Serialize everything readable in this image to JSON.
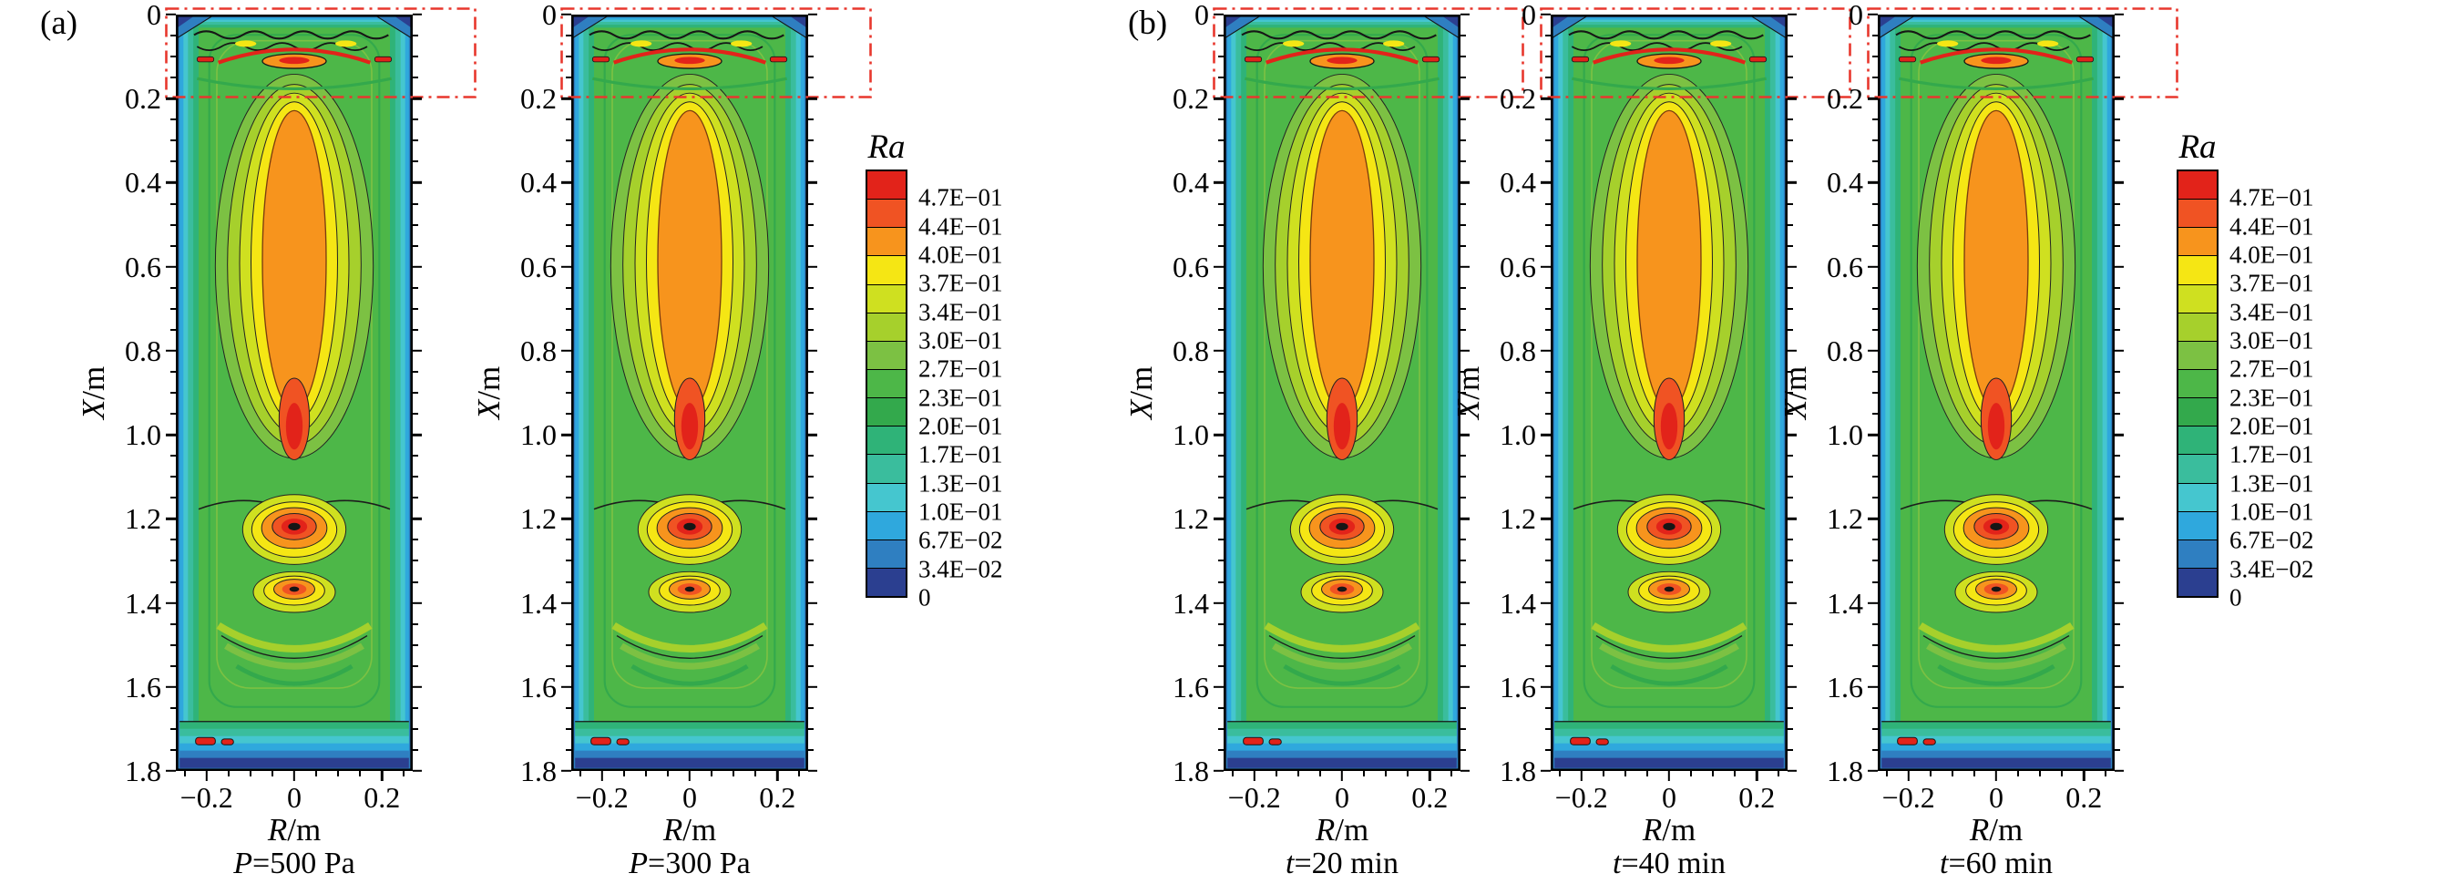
{
  "panels": [
    {
      "label": "(a)",
      "plots": [
        {
          "condition_var": "P",
          "condition_rest": "=500 Pa"
        },
        {
          "condition_var": "P",
          "condition_rest": "=300 Pa"
        }
      ]
    },
    {
      "label": "(b)",
      "plots": [
        {
          "condition_var": "t",
          "condition_rest": "=20 min"
        },
        {
          "condition_var": "t",
          "condition_rest": "=40 min"
        },
        {
          "condition_var": "t",
          "condition_rest": "=60 min"
        }
      ]
    }
  ],
  "axes": {
    "y_title_var": "X",
    "y_title_rest": "/m",
    "x_title_var": "R",
    "x_title_rest": "/m",
    "y_ticks": [
      "0",
      "0.2",
      "0.4",
      "0.6",
      "0.8",
      "1.0",
      "1.2",
      "1.4",
      "1.6",
      "1.8"
    ],
    "x_ticks": [
      "−0.2",
      "0",
      "0.2"
    ]
  },
  "colorbar": {
    "title": "Ra",
    "labels": [
      "4.7E−01",
      "4.4E−01",
      "4.0E−01",
      "3.7E−01",
      "3.4E−01",
      "3.0E−01",
      "2.7E−01",
      "2.3E−01",
      "2.0E−01",
      "1.7E−01",
      "1.3E−01",
      "1.0E−01",
      "6.7E−02",
      "3.4E−02",
      "0"
    ],
    "colors": [
      "#e2231a",
      "#f05323",
      "#f7941d",
      "#f5e614",
      "#cfe020",
      "#a6d02c",
      "#7cc143",
      "#4db748",
      "#33a94c",
      "#2fb378",
      "#3abd9d",
      "#45c6cf",
      "#2fa8dd",
      "#2f7fc1",
      "#2b3f90"
    ]
  },
  "roi": {
    "color": "#e8372d"
  },
  "chart_data": {
    "type": "heatmap",
    "subtype": "filled-contour",
    "variable": "Ra",
    "legend_title": "Ra",
    "colorbar_levels": [
      0,
      0.034,
      0.067,
      0.1,
      0.13,
      0.17,
      0.2,
      0.23,
      0.27,
      0.3,
      0.34,
      0.37,
      0.4,
      0.44,
      0.47
    ],
    "x_axis": {
      "label": "R/m",
      "ticks": [
        -0.2,
        0,
        0.2
      ],
      "range": [
        -0.27,
        0.27
      ]
    },
    "y_axis": {
      "label": "X/m",
      "ticks": [
        0,
        0.2,
        0.4,
        0.6,
        0.8,
        1.0,
        1.2,
        1.4,
        1.6,
        1.8
      ],
      "range": [
        0,
        1.8
      ],
      "direction": "downward"
    },
    "subplots": [
      {
        "panel": "(a)",
        "condition": "P=500 Pa"
      },
      {
        "panel": "(a)",
        "condition": "P=300 Pa"
      },
      {
        "panel": "(b)",
        "condition": "t=20 min"
      },
      {
        "panel": "(b)",
        "condition": "t=40 min"
      },
      {
        "panel": "(b)",
        "condition": "t=60 min"
      }
    ],
    "annotations": [
      "red dash-dot rectangle highlights the top region X = 0 to 0.2 m of every subplot"
    ],
    "features": [
      "elongated hot core (Ra 0.40-0.47, orange/red) along centerline from X 0.15 m to 1.05 m",
      "secondary hot spot with dark center near X 1.2 m",
      "smaller hot spot near X 1.37 m with green/yellow arc bands below to X 1.6 m",
      "turbulent multi-line structure across the top band X 0-0.15 m",
      "cool blue boundary layers at side walls, top corners and bottom band X 1.72-1.8 m",
      "two small red spots at lower left near X 1.75 m"
    ]
  }
}
